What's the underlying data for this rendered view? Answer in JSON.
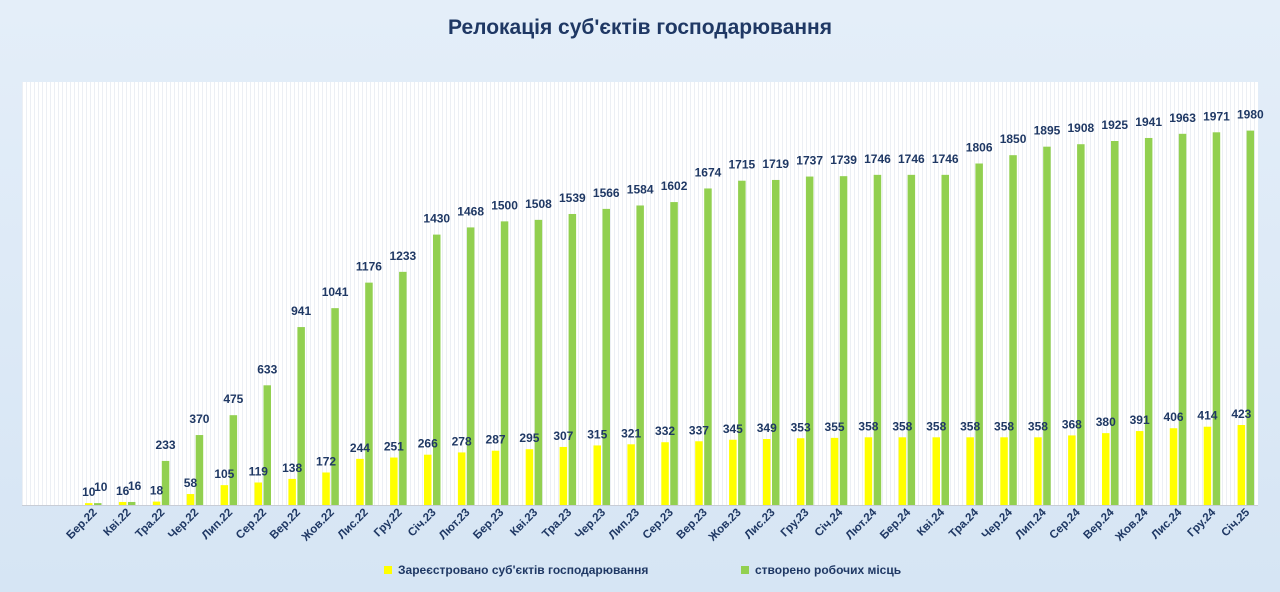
{
  "chart_data": {
    "type": "bar",
    "title": "Релокація суб'єктів господарювання",
    "categories": [
      "Бер.22",
      "Кві.22",
      "Тра.22",
      "Чер.22",
      "Лип.22",
      "Сер.22",
      "Вер.22",
      "Жов.22",
      "Лис.22",
      "Гру.22",
      "Січ.23",
      "Лют.23",
      "Бер.23",
      "Кві.23",
      "Тра.23",
      "Чер.23",
      "Лип.23",
      "Сер.23",
      "Вер.23",
      "Жов.23",
      "Лис.23",
      "Гру.23",
      "Січ.24",
      "Лют.24",
      "Бер.24",
      "Кві.24",
      "Тра.24",
      "Чер.24",
      "Лип.24",
      "Сер.24",
      "Вер.24",
      "Жов.24",
      "Лис.24",
      "Гру.24",
      "Січ.25"
    ],
    "series": [
      {
        "name": "Зареєстровано суб'єктів господарювання",
        "color": "#ffff00",
        "values": [
          10,
          16,
          18,
          58,
          105,
          119,
          138,
          172,
          244,
          251,
          266,
          278,
          287,
          295,
          307,
          315,
          321,
          332,
          337,
          345,
          349,
          353,
          355,
          358,
          358,
          358,
          358,
          358,
          358,
          368,
          380,
          391,
          406,
          414,
          423
        ]
      },
      {
        "name": "створено робочих місць",
        "color": "#92d050",
        "values": [
          10,
          16,
          233,
          370,
          475,
          633,
          941,
          1041,
          1176,
          1233,
          1430,
          1468,
          1500,
          1508,
          1539,
          1566,
          1584,
          1602,
          1674,
          1715,
          1719,
          1737,
          1739,
          1746,
          1746,
          1746,
          1806,
          1850,
          1895,
          1908,
          1925,
          1941,
          1963,
          1971,
          1980
        ]
      }
    ],
    "ylim": [
      0,
      2200
    ],
    "grid": false,
    "legend_position": "bottom"
  }
}
